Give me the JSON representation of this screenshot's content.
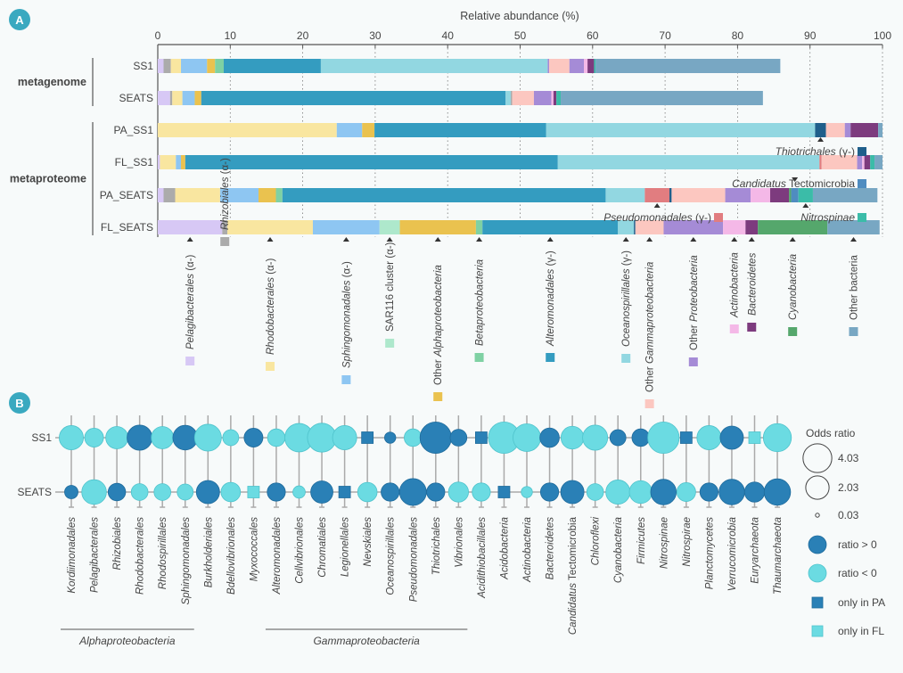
{
  "panels": {
    "a_label": "A",
    "b_label": "B",
    "badge_color": "#3aa9c0"
  },
  "chart_data": [
    {
      "type": "bar",
      "orientation": "horizontal-stacked",
      "title": "Relative abundance (%)",
      "xlabel": "Relative abundance (%)",
      "xlim": [
        0,
        100
      ],
      "xticks": [
        "0",
        "10",
        "20",
        "30",
        "40",
        "50",
        "60",
        "70",
        "80",
        "90",
        "100"
      ],
      "grid": "dotted-vertical",
      "groups": [
        {
          "label": "metagenome",
          "rows": [
            "SS1",
            "SEATS"
          ]
        },
        {
          "label": "metaproteome",
          "rows": [
            "PA_SS1",
            "FL_SS1",
            "PA_SEATS",
            "FL_SEATS"
          ]
        }
      ],
      "taxa": [
        {
          "key": "pel",
          "name": "Pelagibacterales",
          "suffix": " (α-)",
          "italic": true,
          "color": "#d7c8f5"
        },
        {
          "key": "rhi",
          "name": "Rhizobiales",
          "suffix": " (α-)",
          "italic": true,
          "color": "#ababab"
        },
        {
          "key": "rho",
          "name": "Rhodobacterales",
          "suffix": " (α-)",
          "italic": true,
          "color": "#f9e6a0"
        },
        {
          "key": "sph",
          "name": "Sphingomonadales",
          "suffix": " (α-)",
          "italic": true,
          "color": "#8ec6f2"
        },
        {
          "key": "sar",
          "name": "SAR116 cluster",
          "suffix": " (α-)",
          "italic": false,
          "color": "#aee8cc"
        },
        {
          "key": "oal",
          "prefix": "Other ",
          "name": "Alphaproteobacteria",
          "suffix": "",
          "italic": true,
          "color": "#eac24f"
        },
        {
          "key": "bet",
          "name": "Betaproteobacteria",
          "suffix": "",
          "italic": true,
          "color": "#7fd1a3"
        },
        {
          "key": "alt",
          "name": "Alteromonadales",
          "suffix": " (γ-)",
          "italic": true,
          "color": "#349cc0"
        },
        {
          "key": "oce",
          "name": "Oceanospirillales",
          "suffix": " (γ-)",
          "italic": true,
          "color": "#92d7e1"
        },
        {
          "key": "pse",
          "name": "Pseudomonadales",
          "suffix": " (γ-)",
          "italic": true,
          "color": "#e17d80"
        },
        {
          "key": "thi",
          "name": "Thiotrichales",
          "suffix": " (γ-)",
          "italic": true,
          "color": "#1f5f8b"
        },
        {
          "key": "oga",
          "prefix": "Other ",
          "name": "Gammaproteobacteria",
          "suffix": "",
          "italic": true,
          "color": "#fcc7c0"
        },
        {
          "key": "opr",
          "prefix": "Other ",
          "name": "Proteobacteria",
          "suffix": "",
          "italic": true,
          "color": "#a58bd6"
        },
        {
          "key": "act",
          "name": "Actinobacteria",
          "suffix": "",
          "italic": true,
          "color": "#f4b8e7"
        },
        {
          "key": "bac",
          "name": "Bacteroidetes",
          "suffix": "",
          "italic": true,
          "color": "#7d3b7e"
        },
        {
          "key": "cya",
          "name": "Cyanobacteria",
          "suffix": "",
          "italic": true,
          "color": "#55a76c"
        },
        {
          "key": "tec",
          "name": "Candidatus",
          "suffix": " Tectomicrobia",
          "italic": true,
          "color": "#4f8cc0"
        },
        {
          "key": "nit",
          "name": "Nitrospinae",
          "suffix": "",
          "italic": true,
          "color": "#3bbca8"
        },
        {
          "key": "oba",
          "name": "Other bacteria",
          "suffix": "",
          "italic": false,
          "color": "#78a7c3"
        }
      ],
      "bottom_legend": [
        "pel",
        "rhi",
        "rho",
        "sph",
        "sar",
        "oal",
        "bet",
        "alt",
        "oce",
        "oga",
        "opr",
        "act",
        "bac",
        "cya",
        "oba"
      ],
      "inline_legend": [
        {
          "key": "thi",
          "row": "PA_SS1",
          "text_italic": "Thiotrichales",
          "text_plain": " (γ-)"
        },
        {
          "key": "tec",
          "row": "FL_SS1",
          "text_italic": "Candidatus",
          "text_plain": " Tectomicrobia"
        },
        {
          "key": "pse",
          "row": "PA_SEATS",
          "text_italic": "Pseudomonadales",
          "text_plain": " (γ-)"
        },
        {
          "key": "nit",
          "row": "PA_SEATS",
          "text_italic": "Nitrospinae",
          "text_plain": ""
        }
      ],
      "series": [
        {
          "name": "SS1",
          "segments": [
            [
              "pel",
              0.8
            ],
            [
              "rhi",
              1.0
            ],
            [
              "rho",
              1.4
            ],
            [
              "sph",
              3.6
            ],
            [
              "oal",
              1.1
            ],
            [
              "bet",
              1.2
            ],
            [
              "alt",
              13.4
            ],
            [
              "oce",
              31.3
            ],
            [
              "opr",
              0.2
            ],
            [
              "oga",
              2.8
            ],
            [
              "opr",
              2.0
            ],
            [
              "act",
              0.5
            ],
            [
              "bac",
              0.9
            ],
            [
              "nit",
              0.2
            ],
            [
              "oba",
              25.5
            ]
          ]
        },
        {
          "name": "SEATS",
          "segments": [
            [
              "pel",
              1.7
            ],
            [
              "rhi",
              0.3
            ],
            [
              "rho",
              1.4
            ],
            [
              "sph",
              1.7
            ],
            [
              "oal",
              0.9
            ],
            [
              "alt",
              42.0
            ],
            [
              "oce",
              0.7
            ],
            [
              "rhi",
              0.2
            ],
            [
              "oga",
              3.0
            ],
            [
              "opr",
              2.4
            ],
            [
              "act",
              0.3
            ],
            [
              "bac",
              0.4
            ],
            [
              "nit",
              0.6
            ],
            [
              "oba",
              27.9
            ]
          ]
        },
        {
          "name": "PA_SS1",
          "segments": [
            [
              "rho",
              24.7
            ],
            [
              "sph",
              3.5
            ],
            [
              "oal",
              1.7
            ],
            [
              "alt",
              23.7
            ],
            [
              "oce",
              37.1
            ],
            [
              "thi",
              1.5
            ],
            [
              "oga",
              2.6
            ],
            [
              "opr",
              0.8
            ],
            [
              "bac",
              3.8
            ],
            [
              "oba",
              0.6
            ]
          ]
        },
        {
          "name": "FL_SS1",
          "segments": [
            [
              "pel",
              0.3
            ],
            [
              "rho",
              2.2
            ],
            [
              "sph",
              0.7
            ],
            [
              "oal",
              0.6
            ],
            [
              "alt",
              51.4
            ],
            [
              "oce",
              36.1
            ],
            [
              "pse",
              0.3
            ],
            [
              "oga",
              4.9
            ],
            [
              "opr",
              0.7
            ],
            [
              "act",
              0.3
            ],
            [
              "bac",
              0.8
            ],
            [
              "nit",
              0.6
            ],
            [
              "oba",
              1.1
            ]
          ]
        },
        {
          "name": "PA_SEATS",
          "segments": [
            [
              "pel",
              0.8
            ],
            [
              "rhi",
              1.6
            ],
            [
              "rho",
              6.2
            ],
            [
              "sph",
              5.3
            ],
            [
              "oal",
              2.4
            ],
            [
              "bet",
              0.9
            ],
            [
              "alt",
              44.6
            ],
            [
              "oce",
              5.4
            ],
            [
              "pse",
              3.4
            ],
            [
              "thi",
              0.3
            ],
            [
              "oga",
              7.4
            ],
            [
              "opr",
              3.5
            ],
            [
              "act",
              2.7
            ],
            [
              "bac",
              2.6
            ],
            [
              "cya",
              0.3
            ],
            [
              "tec",
              1.0
            ],
            [
              "nit",
              2.0
            ],
            [
              "oba",
              8.9
            ]
          ]
        },
        {
          "name": "FL_SEATS",
          "segments": [
            [
              "pel",
              8.9
            ],
            [
              "rhi",
              0.7
            ],
            [
              "rho",
              11.8
            ],
            [
              "sph",
              9.2
            ],
            [
              "sar",
              2.8
            ],
            [
              "oal",
              10.5
            ],
            [
              "bet",
              0.9
            ],
            [
              "alt",
              18.7
            ],
            [
              "oce",
              2.2
            ],
            [
              "thi",
              0.2
            ],
            [
              "oga",
              3.9
            ],
            [
              "opr",
              8.2
            ],
            [
              "act",
              3.1
            ],
            [
              "bac",
              1.7
            ],
            [
              "cya",
              9.6
            ],
            [
              "oba",
              7.2
            ]
          ]
        }
      ]
    },
    {
      "type": "scatter",
      "subtype": "bubble-matrix",
      "rows": [
        "SS1",
        "SEATS"
      ],
      "taxa": [
        {
          "name": "Kordiimonadales",
          "italic": true
        },
        {
          "name": "Pelagibacterales",
          "italic": true
        },
        {
          "name": "Rhizobiales",
          "italic": true
        },
        {
          "name": "Rhodobacterales",
          "italic": true
        },
        {
          "name": "Rhodospirillales",
          "italic": true
        },
        {
          "name": "Sphingomonadales",
          "italic": true
        },
        {
          "name": "Burkholderiales",
          "italic": true
        },
        {
          "name": "Bdellovibrionales",
          "italic": true
        },
        {
          "name": "Myxococcales",
          "italic": true
        },
        {
          "name": "Alteromonadales",
          "italic": true
        },
        {
          "name": "Cellvibrionales",
          "italic": true
        },
        {
          "name": "Chromatiales",
          "italic": true
        },
        {
          "name": "Legionellales",
          "italic": true
        },
        {
          "name": "Nevskiales",
          "italic": true
        },
        {
          "name": "Oceanospirillales",
          "italic": true
        },
        {
          "name": "Pseudomonadales",
          "italic": true
        },
        {
          "name": "Thiotrichales",
          "italic": true
        },
        {
          "name": "Vibrionales",
          "italic": true
        },
        {
          "name": "Acidithiobacillales",
          "italic": true
        },
        {
          "name": "Acidobacteria",
          "italic": true
        },
        {
          "name": "Actinobacteria",
          "italic": true
        },
        {
          "name": "Bacteroidetes",
          "italic": true
        },
        {
          "name": "Candidatus Tectomicrobia",
          "italic": false
        },
        {
          "name": "Chloroflexi",
          "italic": true
        },
        {
          "name": "Cyanobacteria",
          "italic": true
        },
        {
          "name": "Firmicutes",
          "italic": true
        },
        {
          "name": "Nitrospinae",
          "italic": true
        },
        {
          "name": "Nitrospirae",
          "italic": true
        },
        {
          "name": "Planctomycetes",
          "italic": true
        },
        {
          "name": "Verrucomicrobia",
          "italic": true
        },
        {
          "name": "Euryarchaeota",
          "italic": true
        },
        {
          "name": "Thaumarchaeota",
          "italic": true
        }
      ],
      "groups": [
        {
          "label": "Alphaproteobacteria",
          "from": 0,
          "to": 5
        },
        {
          "label": "Gammaproteobacteria",
          "from": 9,
          "to": 17
        }
      ],
      "values": {
        "SS1": [
          [
            "neg",
            2.2
          ],
          [
            "neg",
            1.2
          ],
          [
            "neg",
            1.8
          ],
          [
            "pos",
            2.4
          ],
          [
            "neg",
            1.8
          ],
          [
            "pos",
            2.3
          ],
          [
            "neg",
            2.8
          ],
          [
            "neg",
            0.8
          ],
          [
            "pos",
            1.2
          ],
          [
            "neg",
            1.0
          ],
          [
            "neg",
            3.2
          ],
          [
            "neg",
            3.3
          ],
          [
            "neg",
            2.2
          ],
          [
            "paonly",
            0
          ],
          [
            "pos",
            0.3
          ],
          [
            "neg",
            1.0
          ],
          [
            "pos",
            4.0
          ],
          [
            "pos",
            0.9
          ],
          [
            "paonly",
            0
          ],
          [
            "neg",
            4.0
          ],
          [
            "neg",
            3.0
          ],
          [
            "pos",
            1.3
          ],
          [
            "neg",
            1.9
          ],
          [
            "neg",
            2.4
          ],
          [
            "pos",
            0.8
          ],
          [
            "pos",
            1.0
          ],
          [
            "neg",
            4.03
          ],
          [
            "paonly",
            0
          ],
          [
            "neg",
            2.2
          ],
          [
            "pos",
            2.0
          ],
          [
            "flonly",
            0
          ],
          [
            "neg",
            3.1
          ]
        ],
        "SEATS": [
          [
            "pos",
            0.5
          ],
          [
            "neg",
            2.3
          ],
          [
            "pos",
            1.0
          ],
          [
            "neg",
            0.9
          ],
          [
            "neg",
            0.9
          ],
          [
            "neg",
            0.8
          ],
          [
            "pos",
            2.0
          ],
          [
            "neg",
            1.3
          ],
          [
            "flonly",
            0
          ],
          [
            "pos",
            1.1
          ],
          [
            "neg",
            0.4
          ],
          [
            "pos",
            1.8
          ],
          [
            "paonly",
            0
          ],
          [
            "neg",
            1.3
          ],
          [
            "pos",
            1.1
          ],
          [
            "pos",
            2.8
          ],
          [
            "pos",
            1.1
          ],
          [
            "neg",
            1.4
          ],
          [
            "neg",
            1.1
          ],
          [
            "paonly",
            0
          ],
          [
            "neg",
            0.3
          ],
          [
            "pos",
            1.1
          ],
          [
            "pos",
            2.0
          ],
          [
            "neg",
            0.9
          ],
          [
            "neg",
            2.2
          ],
          [
            "neg",
            1.9
          ],
          [
            "pos",
            2.5
          ],
          [
            "neg",
            1.2
          ],
          [
            "pos",
            1.1
          ],
          [
            "pos",
            2.5
          ],
          [
            "pos",
            1.4
          ],
          [
            "pos",
            2.7
          ]
        ]
      },
      "legend": {
        "title": "Odds ratio",
        "sizes": [
          {
            "label": "4.03",
            "value": 4.03
          },
          {
            "label": "2.03",
            "value": 2.03
          },
          {
            "label": "0.03",
            "value": 0.03
          }
        ],
        "markers": [
          {
            "key": "pos",
            "label": "ratio > 0",
            "shape": "circle",
            "color": "#2a80b6"
          },
          {
            "key": "neg",
            "label": "ratio < 0",
            "shape": "circle",
            "color": "#6bdbe2"
          },
          {
            "key": "paonly",
            "label": "only in PA",
            "shape": "square",
            "color": "#2a80b6"
          },
          {
            "key": "flonly",
            "label": "only in FL",
            "shape": "square",
            "color": "#6bdbe2"
          }
        ]
      }
    }
  ]
}
